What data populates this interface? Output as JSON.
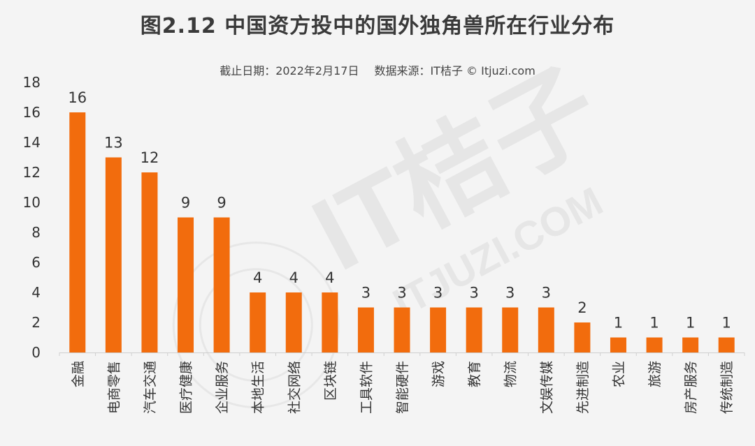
{
  "title": "图2.12  中国资方投中的国外独角兽所在行业分布",
  "subtitle": {
    "date": "截止日期：2022年2月17日",
    "source": "数据来源：IT桔子 © Itjuzi.com"
  },
  "watermark": {
    "brand": "IT桔子",
    "site": "ITJUZI.COM"
  },
  "colors": {
    "bar": "#f26c0d",
    "axis": "#cfcfcf",
    "text": "#333333",
    "background": "#f4f4f4"
  },
  "chart_data": {
    "type": "bar",
    "categories": [
      "金融",
      "电商零售",
      "汽车交通",
      "医疗健康",
      "企业服务",
      "本地生活",
      "社交网络",
      "区块链",
      "工具软件",
      "智能硬件",
      "游戏",
      "教育",
      "物流",
      "文娱传媒",
      "先进制造",
      "农业",
      "旅游",
      "房产服务",
      "传统制造"
    ],
    "values": [
      16,
      13,
      12,
      9,
      9,
      4,
      4,
      4,
      3,
      3,
      3,
      3,
      3,
      3,
      2,
      1,
      1,
      1,
      1
    ],
    "yticks": [
      0,
      2,
      4,
      6,
      8,
      10,
      12,
      14,
      16,
      18
    ],
    "ylim": [
      0,
      18
    ],
    "xlabel": "",
    "ylabel": "",
    "grid": false,
    "data_labels": true,
    "legend": "none"
  }
}
